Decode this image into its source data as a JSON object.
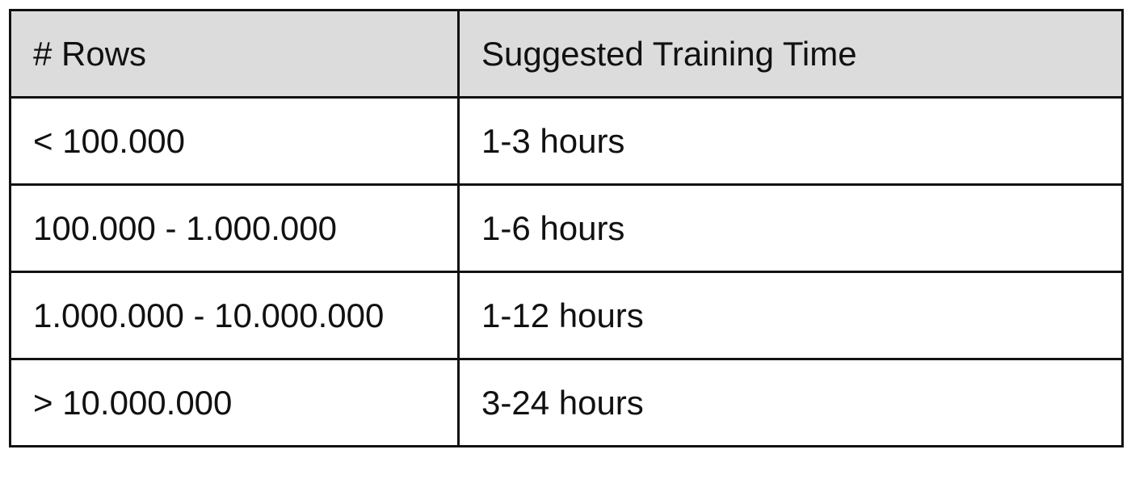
{
  "table": {
    "headers": [
      "# Rows",
      "Suggested Training Time"
    ],
    "rows": [
      [
        "< 100.000",
        "1-3 hours"
      ],
      [
        "100.000 - 1.000.000",
        "1-6 hours"
      ],
      [
        "1.000.000 - 10.000.000",
        "1-12 hours"
      ],
      [
        "> 10.000.000",
        "3-24 hours"
      ]
    ],
    "header_background": "#dcdcdc",
    "border_color": "#111111"
  }
}
